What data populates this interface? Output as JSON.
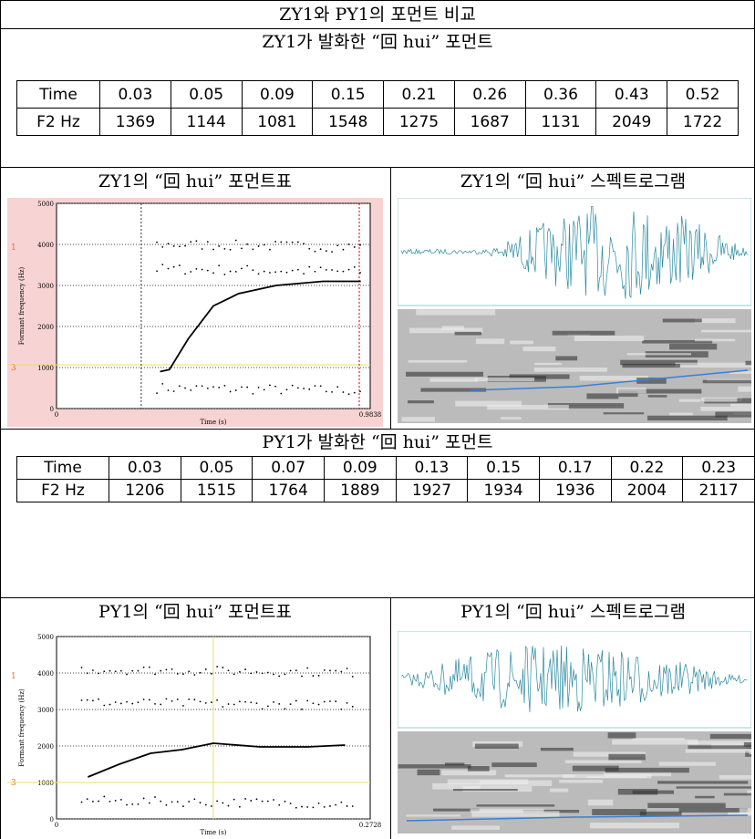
{
  "title": "ZY1와 PY1의 포먼트 비교",
  "sections": [
    {
      "heading": "ZY1가 발화한 “回 hui” 포먼트",
      "table": [
        [
          "Time",
          "0.03",
          "0.05",
          "0.09",
          "0.15",
          "0.21",
          "0.26",
          "0.36",
          "0.43",
          "0.52"
        ],
        [
          "F2 Hz",
          "1369",
          "1144",
          "1081",
          "1548",
          "1275",
          "1687",
          "1131",
          "2049",
          "1722"
        ]
      ],
      "plot": {
        "title": "ZY1의 “回 hui” 포먼트표",
        "yticks": [
          "5000",
          "4000",
          "3000",
          "2000",
          "1000",
          "0"
        ],
        "markers": [
          "1",
          "3"
        ],
        "ylabel": "Formant frequency (Hz)",
        "xlabel": "Time (s)",
        "xticks": [
          "0",
          "0.9838"
        ]
      },
      "spectrogram_title": "ZY1의 “回 hui” 스펙트로그램"
    },
    {
      "heading": "PY1가 발화한 “回 hui” 포먼트",
      "table": [
        [
          "Time",
          "0.03",
          "0.05",
          "0.07",
          "0.09",
          "0.13",
          "0.15",
          "0.17",
          "0.22",
          "0.23"
        ],
        [
          "F2 Hz",
          "1206",
          "1515",
          "1764",
          "1889",
          "1927",
          "1934",
          "1936",
          "2004",
          "2117"
        ]
      ],
      "plot": {
        "title": "PY1의 “回 hui” 포먼트표",
        "yticks": [
          "5000",
          "4000",
          "3000",
          "2000",
          "1000",
          "0"
        ],
        "markers": [
          "1",
          "3"
        ],
        "ylabel": "Formant frequency (Hz)",
        "xlabel": "Time (s)",
        "xticks": [
          "0",
          "0.2728"
        ]
      },
      "spectrogram_title": "PY1의 “回 hui” 스펙트로그램"
    }
  ]
}
